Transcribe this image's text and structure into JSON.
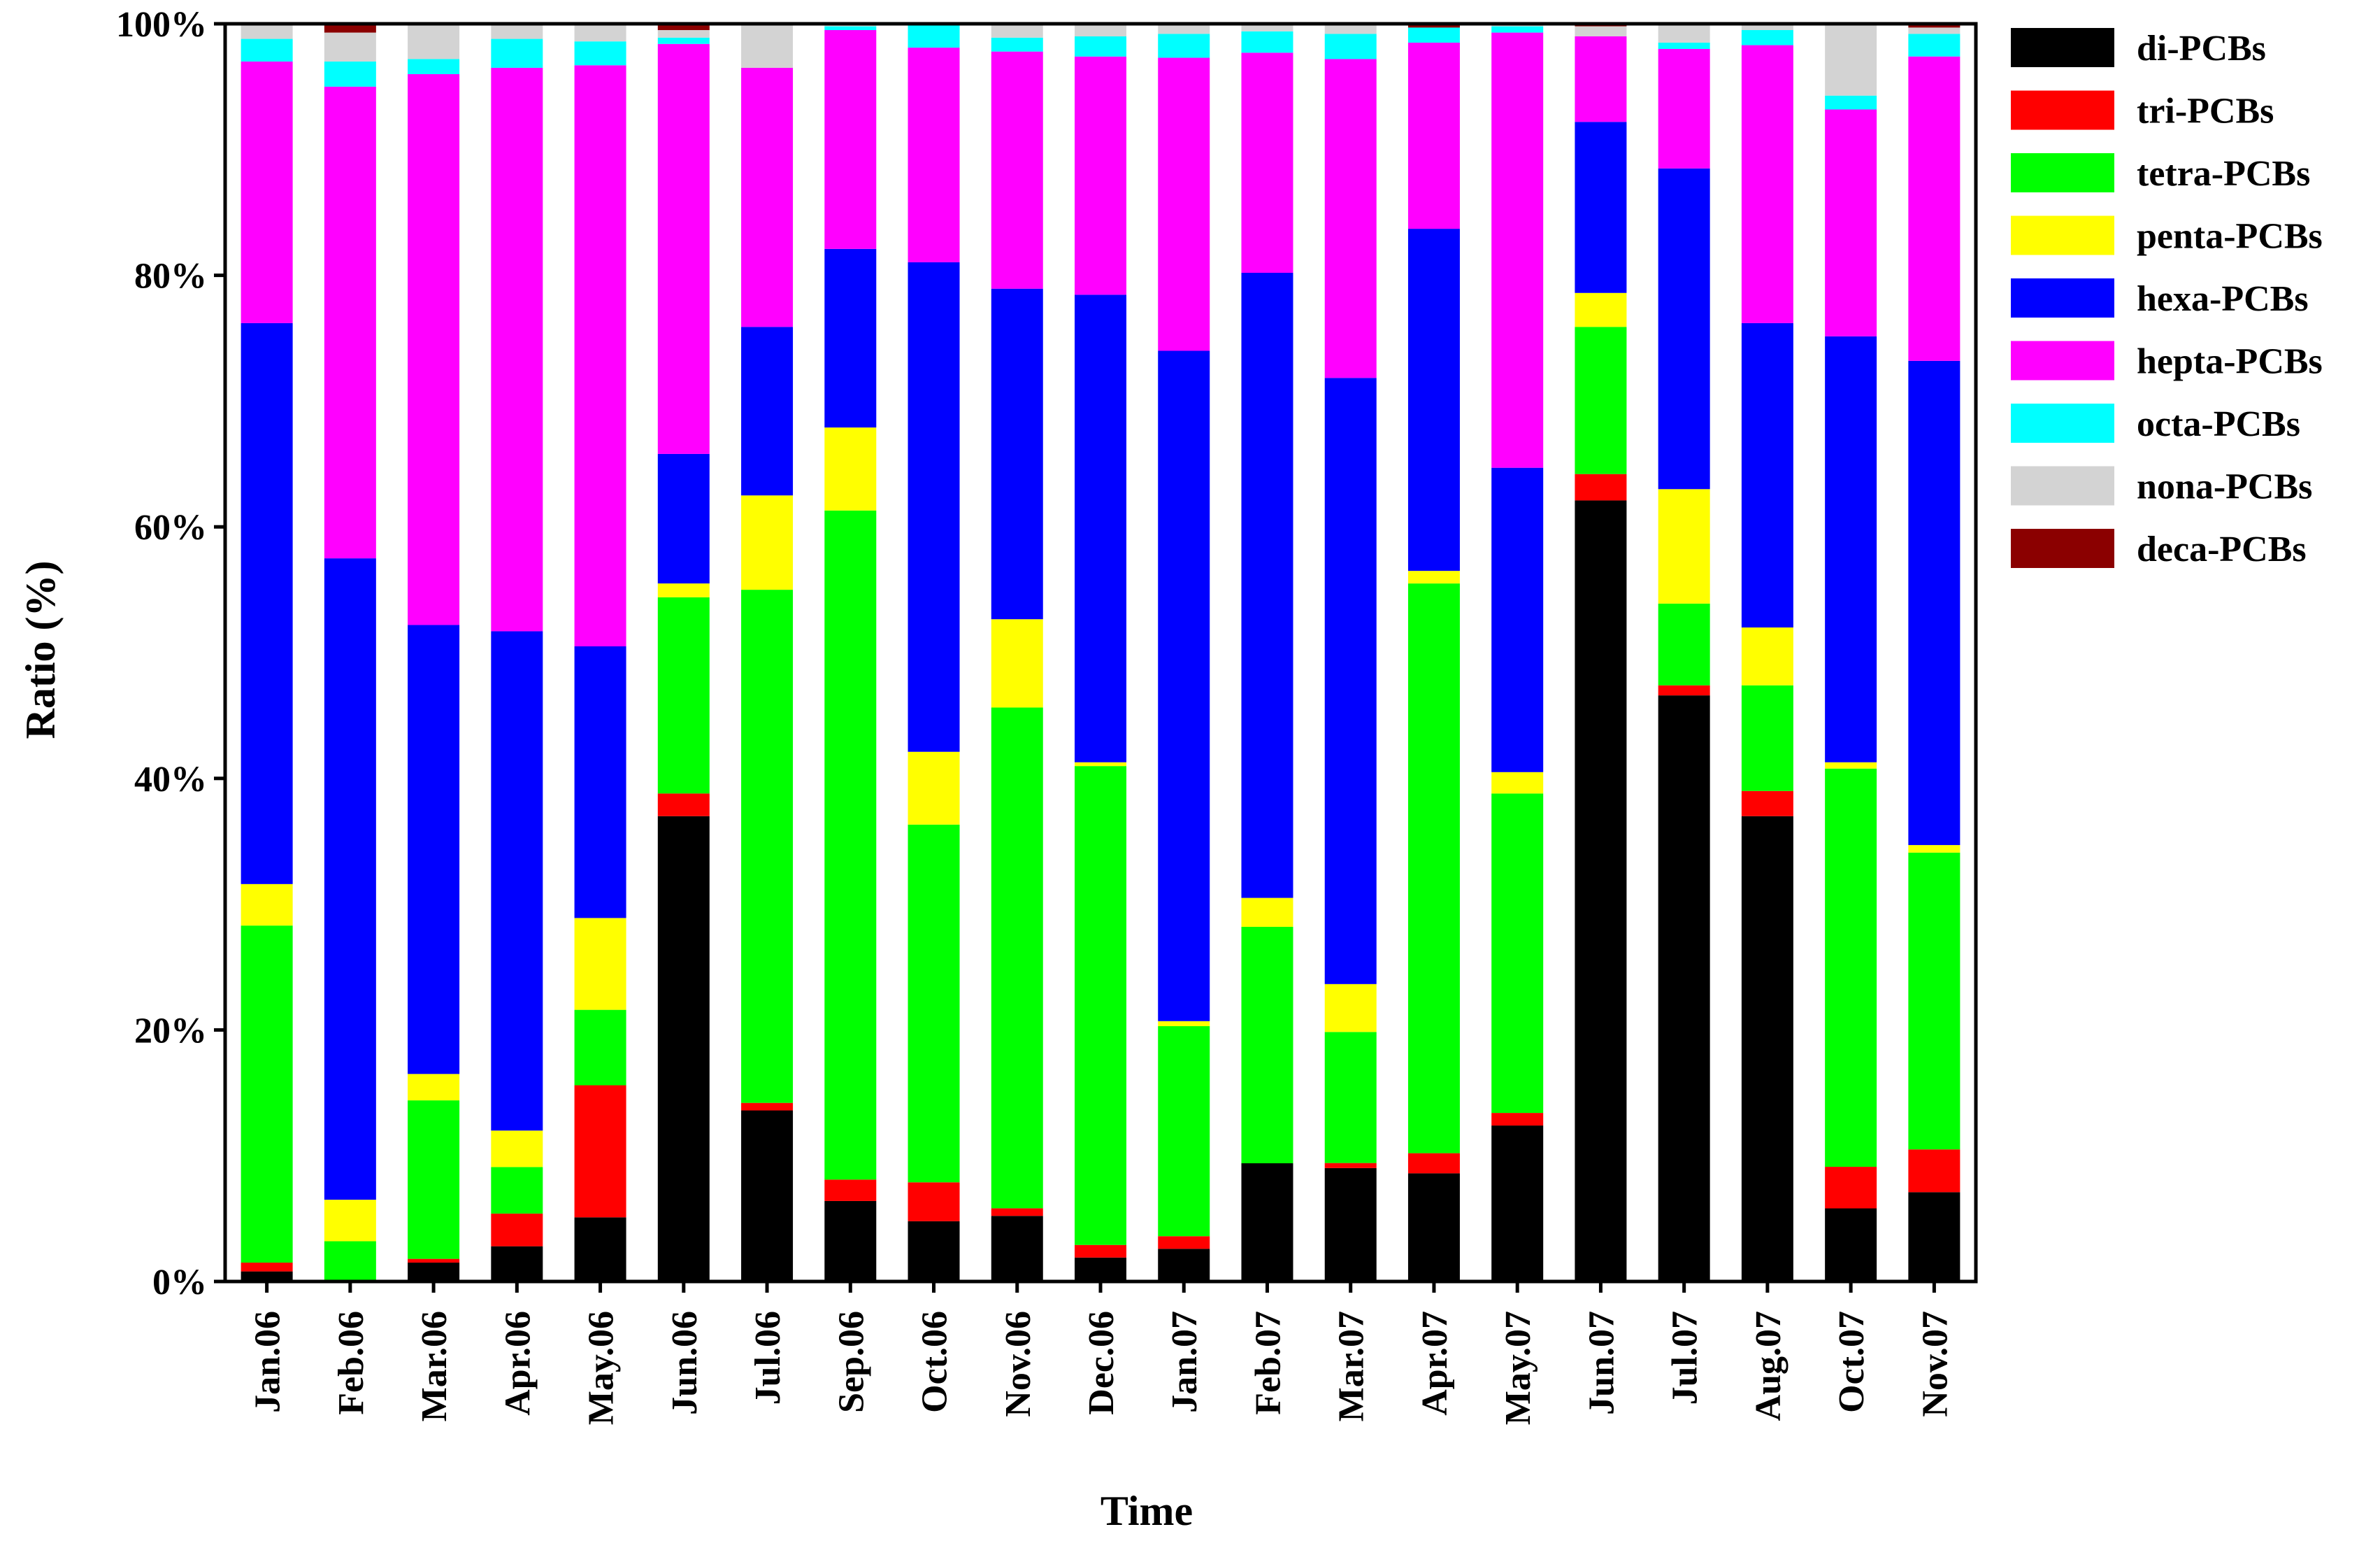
{
  "chart_data": {
    "type": "bar",
    "stacked": true,
    "percent": true,
    "title": "",
    "xlabel": "Time",
    "ylabel": "Ratio (%)",
    "ylim": [
      0,
      100
    ],
    "yticks": [
      0,
      20,
      40,
      60,
      80,
      100
    ],
    "ytick_labels": [
      "0%",
      "20%",
      "40%",
      "60%",
      "80%",
      "100%"
    ],
    "legend_position": "right",
    "categories": [
      "Jan.06",
      "Feb.06",
      "Mar.06",
      "Apr.06",
      "May.06",
      "Jun.06",
      "Jul.06",
      "Sep.06",
      "Oct.06",
      "Nov.06",
      "Dec.06",
      "Jan.07",
      "Feb.07",
      "Mar.07",
      "Apr.07",
      "May.07",
      "Jun.07",
      "Jul.07",
      "Aug.07",
      "Oct.07",
      "Nov.07"
    ],
    "series": [
      {
        "name": "di-PCBs",
        "color": "#000000",
        "values": [
          0.8,
          0,
          1.5,
          2.8,
          5.1,
          37.0,
          13.6,
          6.4,
          4.8,
          5.2,
          1.9,
          2.6,
          9.4,
          9.0,
          8.6,
          12.4,
          62.1,
          46.6,
          37.0,
          5.8,
          7.1
        ]
      },
      {
        "name": "tri-PCBs",
        "color": "#ff0000",
        "values": [
          0.7,
          0,
          0.3,
          2.6,
          10.5,
          1.8,
          0.6,
          1.7,
          3.1,
          0.6,
          1.0,
          1.0,
          0,
          0.4,
          1.6,
          1.0,
          2.1,
          0.8,
          2.0,
          3.3,
          3.4
        ]
      },
      {
        "name": "tetra-PCBs",
        "color": "#00ff00",
        "values": [
          26.8,
          3.2,
          12.6,
          3.7,
          6.0,
          15.6,
          40.8,
          53.2,
          28.5,
          39.7,
          38.0,
          16.7,
          18.8,
          10.4,
          45.3,
          25.4,
          11.7,
          6.5,
          8.4,
          31.6,
          23.6
        ]
      },
      {
        "name": "penta-PCBs",
        "color": "#ffff00",
        "values": [
          3.3,
          3.3,
          2.1,
          2.9,
          7.3,
          1.1,
          7.5,
          6.6,
          5.8,
          7.0,
          0.3,
          0.4,
          2.3,
          3.8,
          1.0,
          1.7,
          2.7,
          9.1,
          4.6,
          0.5,
          0.6
        ]
      },
      {
        "name": "hexa-PCBs",
        "color": "#0000ff",
        "values": [
          44.6,
          51.0,
          35.7,
          39.7,
          21.6,
          10.3,
          13.4,
          14.2,
          39.0,
          26.2,
          37.1,
          53.3,
          49.7,
          48.1,
          27.2,
          24.2,
          13.6,
          25.5,
          24.2,
          33.8,
          38.5
        ]
      },
      {
        "name": "hepta-PCBs",
        "color": "#ff00ff",
        "values": [
          20.8,
          37.5,
          43.8,
          44.8,
          46.2,
          32.6,
          20.6,
          17.4,
          17.1,
          18.8,
          18.9,
          23.3,
          17.5,
          25.3,
          14.8,
          34.6,
          6.8,
          9.5,
          22.1,
          18.0,
          24.2
        ]
      },
      {
        "name": "octa-PCBs",
        "color": "#00ffff",
        "values": [
          1.8,
          2.0,
          1.2,
          2.3,
          1.9,
          0.5,
          0,
          0.3,
          1.9,
          1.1,
          1.6,
          1.9,
          1.7,
          2.0,
          1.2,
          0.5,
          0,
          0.5,
          1.2,
          1.1,
          1.8
        ]
      },
      {
        "name": "nona-PCBs",
        "color": "#d3d3d3",
        "values": [
          1.2,
          2.3,
          2.8,
          1.2,
          1.4,
          0.6,
          3.5,
          0.2,
          0,
          1.1,
          1.0,
          0.8,
          0.6,
          0.8,
          0,
          0.2,
          0.8,
          1.5,
          0.5,
          5.7,
          0.5
        ]
      },
      {
        "name": "deca-PCBs",
        "color": "#8b0000",
        "values": [
          0,
          0.7,
          0,
          0,
          0,
          0.5,
          0,
          0,
          0,
          0,
          0,
          0,
          0,
          0,
          0.3,
          0,
          0.2,
          0,
          0,
          0,
          0.3
        ]
      }
    ]
  }
}
